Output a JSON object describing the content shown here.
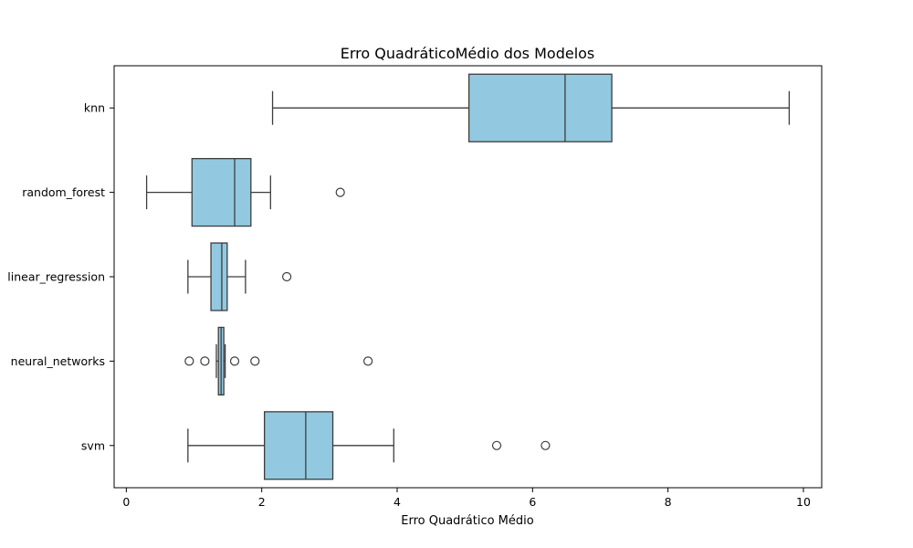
{
  "chart_data": {
    "type": "boxplot",
    "orientation": "horizontal",
    "title": "Erro QuadráticoMédio  dos Modelos",
    "xlabel": "Erro Quadrático Médio",
    "ylabel": "",
    "xlim": [
      -0.18,
      10.27
    ],
    "xticks": [
      0,
      2,
      4,
      6,
      8,
      10
    ],
    "box_color": "#92C9E0",
    "line_color": "#3d3d3d",
    "categories": [
      "knn",
      "random_forest",
      "linear_regression",
      "neural_networks",
      "svm"
    ],
    "boxes": [
      {
        "label": "knn",
        "whisker_low": 2.16,
        "q1": 5.06,
        "median": 6.48,
        "q3": 7.17,
        "whisker_high": 9.79,
        "outliers": []
      },
      {
        "label": "random_forest",
        "whisker_low": 0.3,
        "q1": 0.97,
        "median": 1.6,
        "q3": 1.84,
        "whisker_high": 2.13,
        "outliers": [
          3.16
        ]
      },
      {
        "label": "linear_regression",
        "whisker_low": 0.91,
        "q1": 1.25,
        "median": 1.41,
        "q3": 1.49,
        "whisker_high": 1.76,
        "outliers": [
          2.37
        ]
      },
      {
        "label": "neural_networks",
        "whisker_low": 1.33,
        "q1": 1.36,
        "median": 1.4,
        "q3": 1.44,
        "whisker_high": 1.46,
        "outliers": [
          0.93,
          1.16,
          1.6,
          1.9,
          3.57
        ]
      },
      {
        "label": "svm",
        "whisker_low": 0.91,
        "q1": 2.04,
        "median": 2.65,
        "q3": 3.05,
        "whisker_high": 3.95,
        "outliers": [
          5.47,
          6.19
        ]
      }
    ]
  }
}
